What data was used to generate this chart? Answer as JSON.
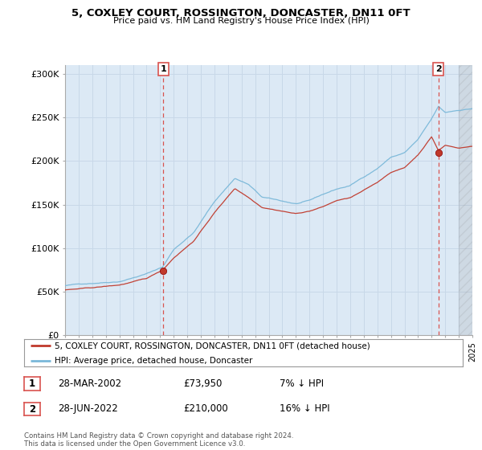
{
  "title": "5, COXLEY COURT, ROSSINGTON, DONCASTER, DN11 0FT",
  "subtitle": "Price paid vs. HM Land Registry's House Price Index (HPI)",
  "legend_line1": "5, COXLEY COURT, ROSSINGTON, DONCASTER, DN11 0FT (detached house)",
  "legend_line2": "HPI: Average price, detached house, Doncaster",
  "sale1_date": "28-MAR-2002",
  "sale1_price": "£73,950",
  "sale1_hpi": "7% ↓ HPI",
  "sale2_date": "28-JUN-2022",
  "sale2_price": "£210,000",
  "sale2_hpi": "16% ↓ HPI",
  "footer": "Contains HM Land Registry data © Crown copyright and database right 2024.\nThis data is licensed under the Open Government Licence v3.0.",
  "hpi_color": "#7ab8d9",
  "price_color": "#c0392b",
  "sale_vline_color": "#d9534f",
  "grid_color": "#c8d8e8",
  "chart_bg": "#dce9f5",
  "background_color": "#ffffff",
  "ylim": [
    0,
    310000
  ],
  "yticks": [
    0,
    50000,
    100000,
    150000,
    200000,
    250000,
    300000
  ],
  "ytick_labels": [
    "£0",
    "£50K",
    "£100K",
    "£150K",
    "£200K",
    "£250K",
    "£300K"
  ],
  "year_start": 1995,
  "year_end": 2025,
  "sale1_year": 2002.24,
  "sale2_year": 2022.49,
  "sale1_price_val": 73950,
  "sale2_price_val": 210000
}
